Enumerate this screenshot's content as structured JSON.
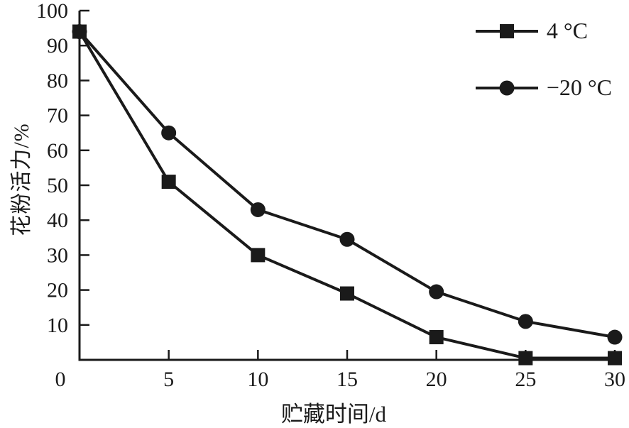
{
  "colors": {
    "ink": "#1a1a1a",
    "background": "#ffffff"
  },
  "chart_data": {
    "type": "line",
    "title": "",
    "xlabel": "贮藏时间/d",
    "ylabel": "花粉活力/%",
    "xlim": [
      0,
      30
    ],
    "ylim": [
      0,
      100
    ],
    "x_ticks": [
      0,
      5,
      10,
      15,
      20,
      25,
      30
    ],
    "y_ticks": [
      10,
      20,
      30,
      40,
      50,
      60,
      70,
      80,
      90,
      100
    ],
    "grid": false,
    "legend_position": "top-right",
    "x": [
      0,
      5,
      10,
      15,
      20,
      25,
      30
    ],
    "series": [
      {
        "name": "4 °C",
        "marker": "square",
        "color": "#1a1a1a",
        "values": [
          94,
          51,
          30,
          19,
          6.5,
          0.5,
          0.5
        ]
      },
      {
        "name": "−20 °C",
        "marker": "circle",
        "color": "#1a1a1a",
        "values": [
          94,
          65,
          43,
          34.5,
          19.5,
          11,
          6.5
        ]
      }
    ]
  }
}
